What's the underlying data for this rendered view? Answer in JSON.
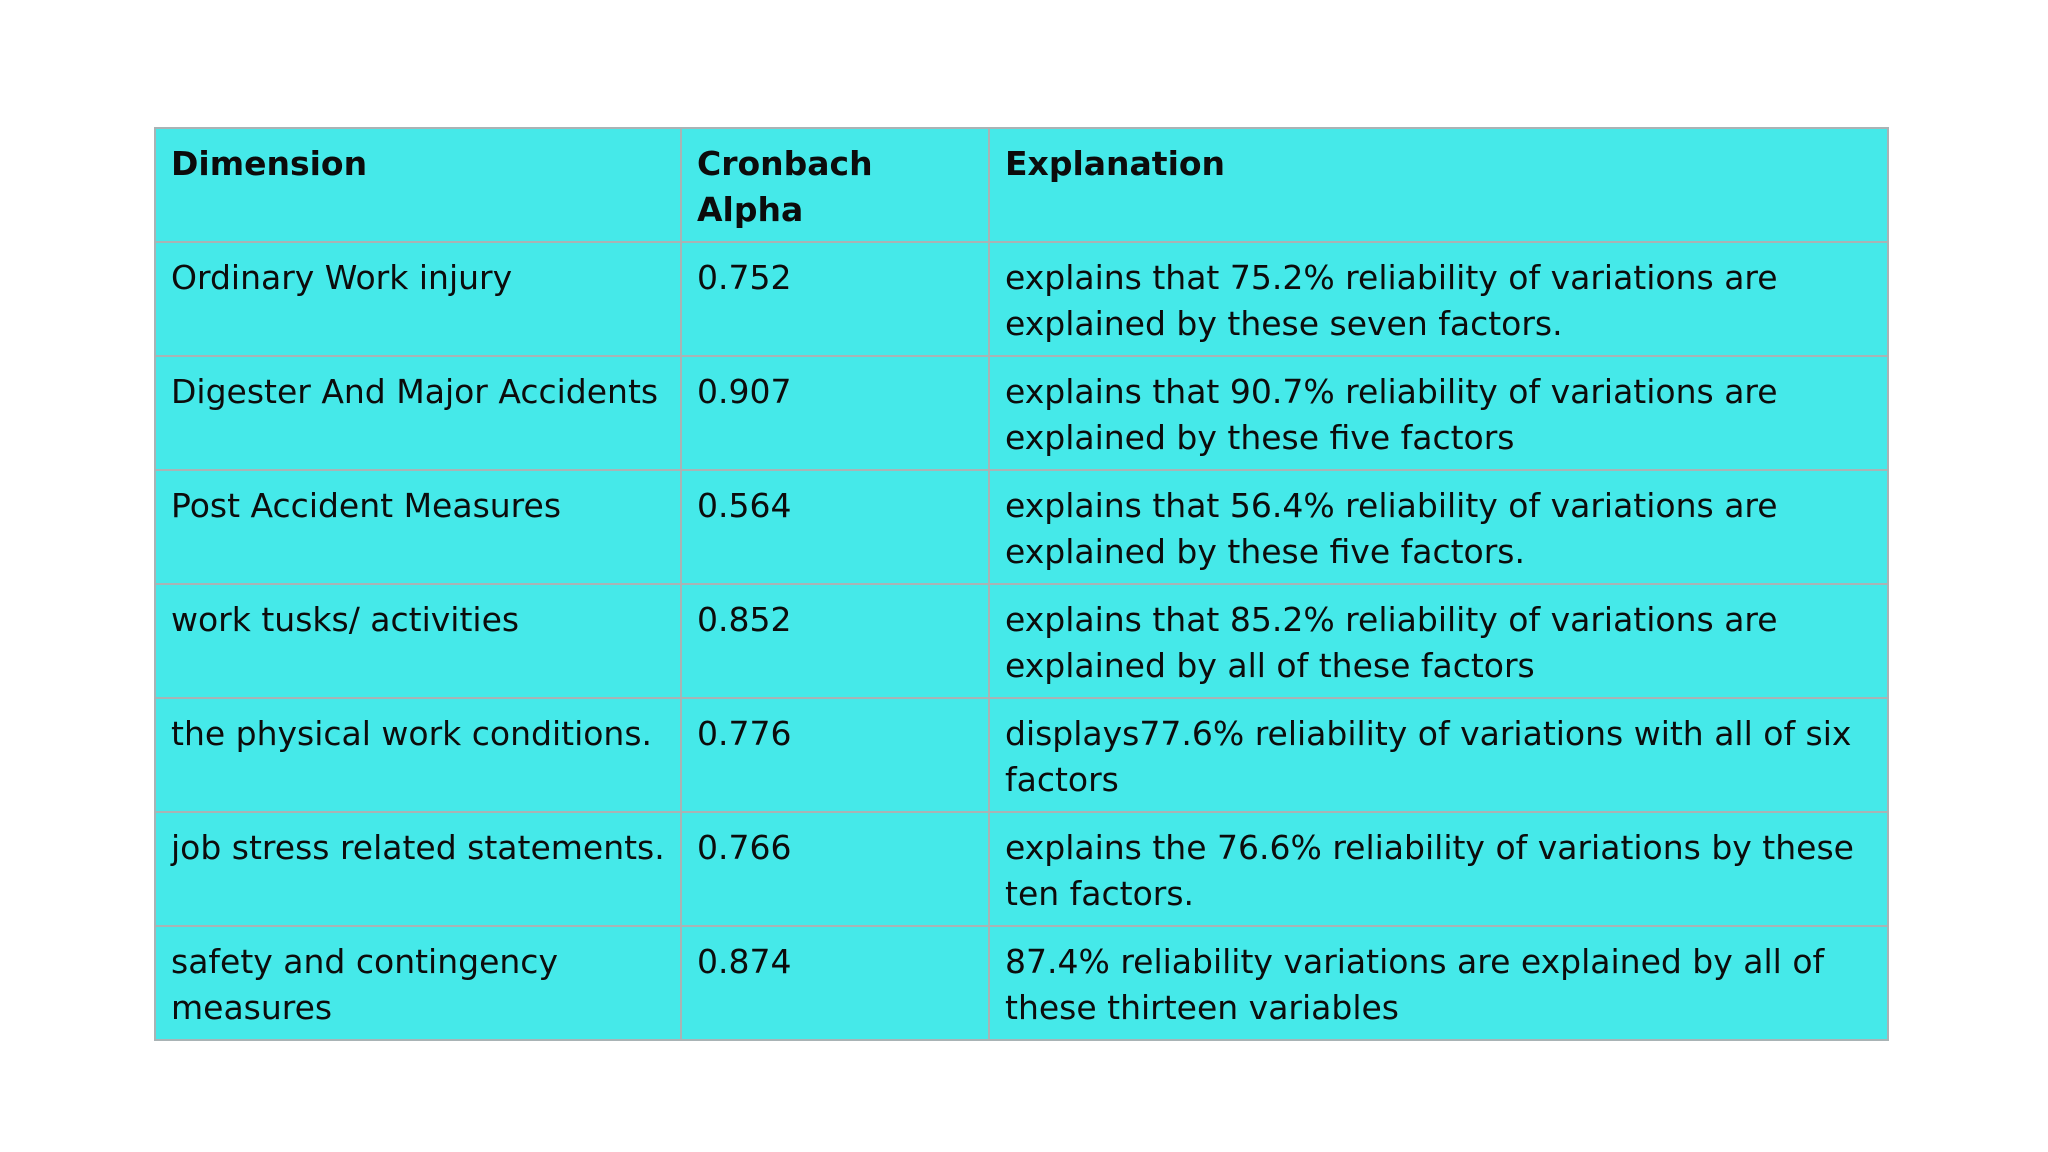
{
  "table": {
    "headers": [
      "Dimension",
      "Cronbach Alpha",
      "Explanation"
    ],
    "rows": [
      {
        "dimension": "Ordinary Work  injury",
        "alpha": "0.752",
        "explanation": "explains that 75.2% reliability of variations are explained by these seven factors."
      },
      {
        "dimension": "Digester And Major   Accidents",
        "alpha": "0.907",
        "explanation": "explains that 90.7% reliability of variations are explained by these five factors"
      },
      {
        "dimension": "Post Accident Measures",
        "alpha": "0.564",
        "explanation": "explains that 56.4% reliability of variations are explained by these five factors."
      },
      {
        "dimension": "work tusks/ activities",
        "alpha": "0.852",
        "explanation": "explains that 85.2% reliability of variations are explained by all of these factors"
      },
      {
        "dimension": "the physical work conditions.",
        "alpha": "0.776",
        "explanation": "displays77.6% reliability of variations with all of six factors"
      },
      {
        "dimension": "job stress related statements.",
        "alpha": "0.766",
        "explanation": "explains the 76.6% reliability of variations by these ten factors."
      },
      {
        "dimension": "safety and contingency measures",
        "alpha": "0.874",
        "explanation": "87.4% reliability variations are explained by all of these thirteen variables"
      }
    ]
  },
  "colors": {
    "cell_background": "#45e9e9",
    "border": "#a9b3b5",
    "text": "#0c0c0c",
    "page_background": "#ffffff"
  }
}
